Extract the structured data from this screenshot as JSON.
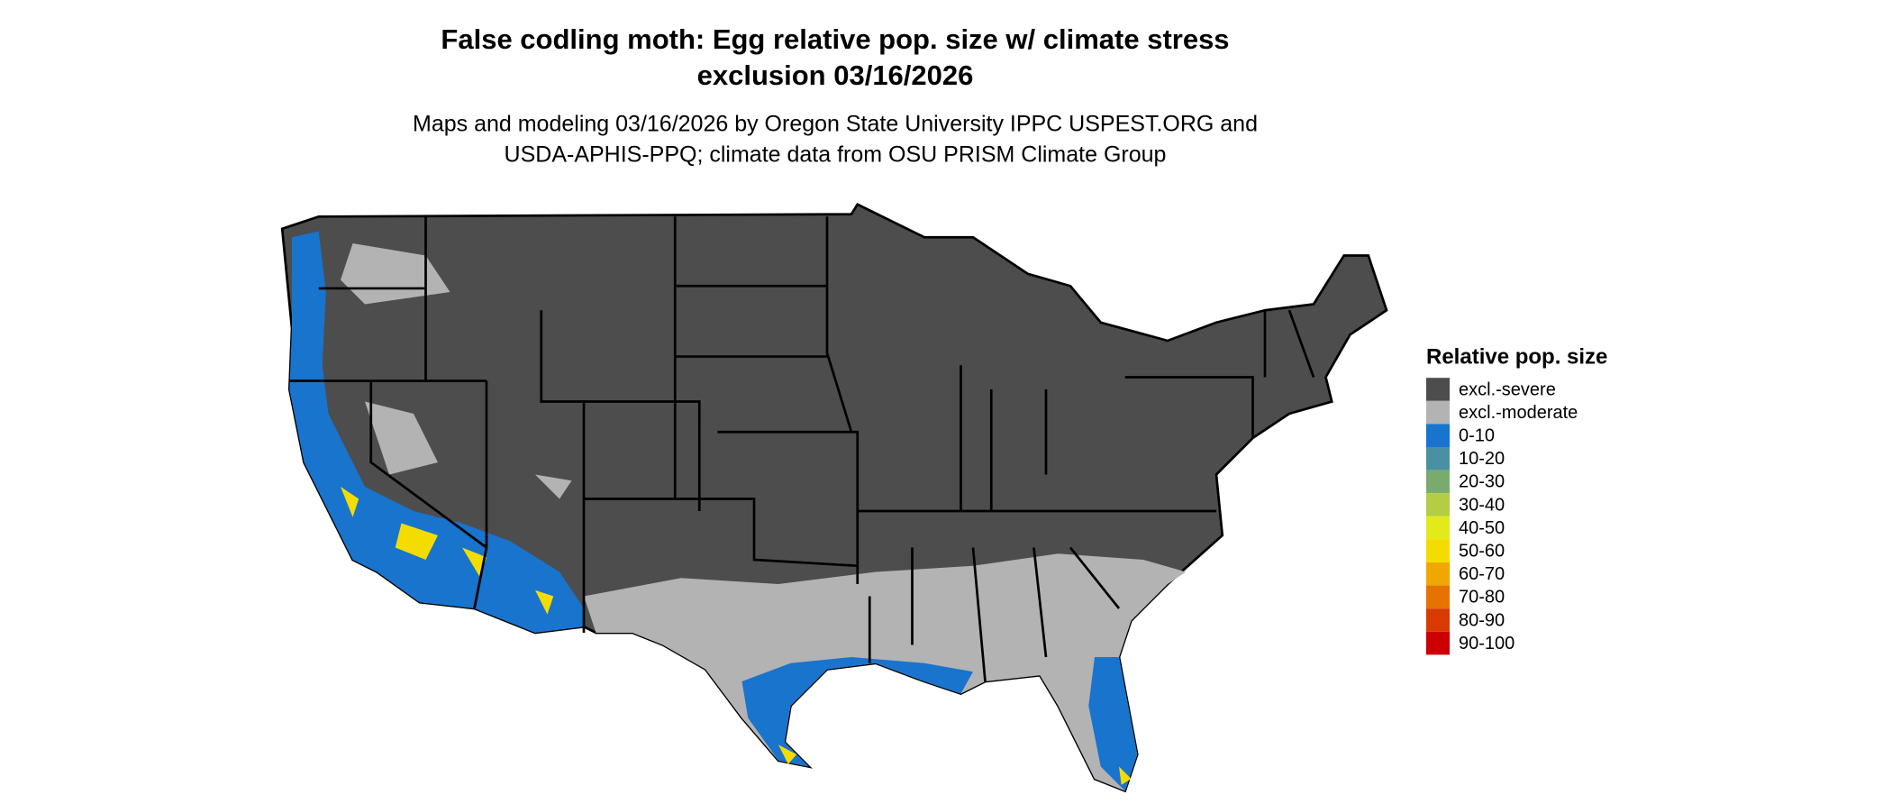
{
  "title_lines": [
    "False codling moth: Egg relative pop. size w/ climate stress",
    "exclusion 03/16/2026"
  ],
  "subtitle_lines": [
    "Maps and modeling 03/16/2026 by Oregon State University IPPC USPEST.ORG and",
    "USDA-APHIS-PPQ; climate data from OSU PRISM Climate Group"
  ],
  "legend": {
    "title": "Relative pop. size",
    "items": [
      {
        "label": "excl.-severe",
        "color": "#4d4d4d"
      },
      {
        "label": "excl.-moderate",
        "color": "#b3b3b3"
      },
      {
        "label": "0-10",
        "color": "#1874cd"
      },
      {
        "label": "10-20",
        "color": "#4a90a4"
      },
      {
        "label": "20-30",
        "color": "#7aab6e"
      },
      {
        "label": "30-40",
        "color": "#b4cd45"
      },
      {
        "label": "40-50",
        "color": "#e3ea1b"
      },
      {
        "label": "50-60",
        "color": "#f5dc00"
      },
      {
        "label": "60-70",
        "color": "#f0a800"
      },
      {
        "label": "70-80",
        "color": "#e67300"
      },
      {
        "label": "80-90",
        "color": "#d93a00"
      },
      {
        "label": "90-100",
        "color": "#cc0000"
      }
    ]
  }
}
